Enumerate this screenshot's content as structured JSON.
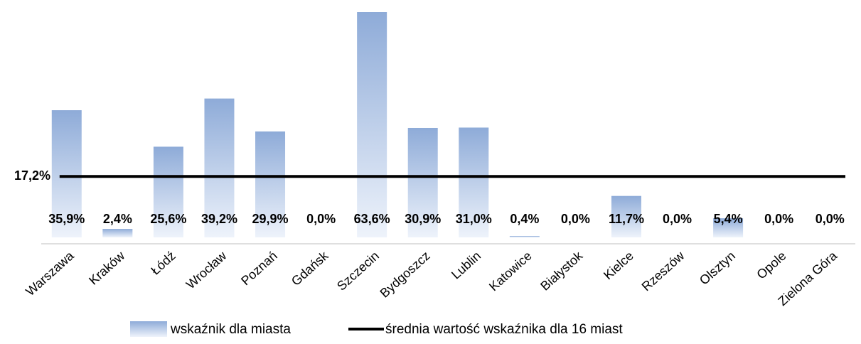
{
  "chart_data": {
    "type": "bar",
    "categories": [
      "Warszawa",
      "Kraków",
      "Łódź",
      "Wrocław",
      "Poznań",
      "Gdańsk",
      "Szczecin",
      "Bydgoszcz",
      "Lublin",
      "Katowice",
      "Białystok",
      "Kielce",
      "Rzeszów",
      "Olsztyn",
      "Opole",
      "Zielona Góra"
    ],
    "series": [
      {
        "name": "wskaźnik dla miasta",
        "color": "#8eabd8",
        "values": [
          35.9,
          2.4,
          25.6,
          39.2,
          29.9,
          0.0,
          63.6,
          30.9,
          31.0,
          0.4,
          0.0,
          11.7,
          0.0,
          5.4,
          0.0,
          0.0
        ],
        "value_labels": [
          "35,9%",
          "2,4%",
          "25,6%",
          "39,2%",
          "29,9%",
          "0,0%",
          "63,6%",
          "30,9%",
          "31,0%",
          "0,4%",
          "0,0%",
          "11,7%",
          "0,0%",
          "5,4%",
          "0,0%",
          "0,0%"
        ]
      },
      {
        "name": "średnia wartość wskaźnika dla 16 miast",
        "color": "#000000",
        "value": 17.2,
        "value_label": "17,2%"
      }
    ]
  }
}
